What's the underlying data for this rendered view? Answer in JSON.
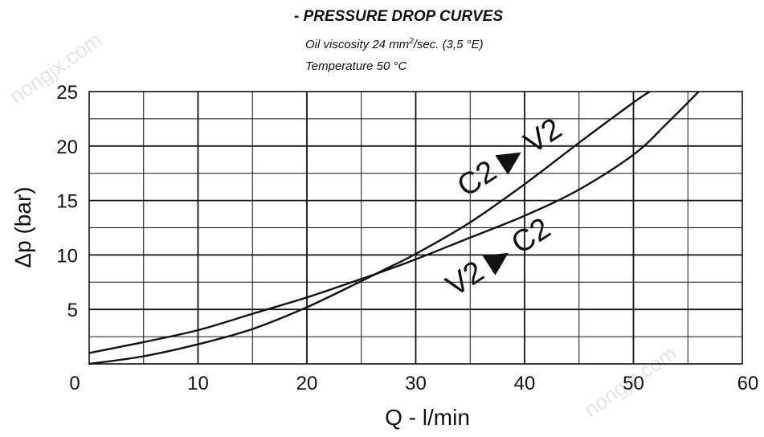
{
  "header": {
    "title": "- PRESSURE DROP CURVES",
    "subtitle_prefix": "Oil viscosity 24 mm",
    "subtitle_sup": "2",
    "subtitle_suffix": "/sec. (3,5 °E)",
    "subtitle2": "Temperature 50 °C"
  },
  "watermarks": [
    "nongjx.com",
    "nongjx.com"
  ],
  "chart_data": {
    "type": "line",
    "xlabel": "Q - l/min",
    "ylabel": "Δp (bar)",
    "xlim": [
      0,
      60
    ],
    "ylim": [
      0,
      25
    ],
    "x_major_ticks": [
      0,
      10,
      20,
      30,
      40,
      50,
      60
    ],
    "y_major_ticks": [
      5,
      10,
      15,
      20,
      25
    ],
    "x_tick_labels": [
      "0",
      "10",
      "20",
      "30",
      "40",
      "50",
      "60"
    ],
    "y_tick_labels": [
      "5",
      "10",
      "15",
      "20",
      "25"
    ],
    "grid": true,
    "series": [
      {
        "name": "C2 ▶ V2",
        "x": [
          0,
          5,
          10,
          15,
          20,
          25,
          27,
          30,
          35,
          40,
          45,
          50,
          51.5
        ],
        "y": [
          0,
          0.7,
          1.8,
          3.2,
          5.2,
          7.6,
          8.6,
          10.1,
          13.0,
          16.5,
          20.3,
          24.0,
          25
        ]
      },
      {
        "name": "V2 ▶ C2",
        "x": [
          0,
          5,
          10,
          15,
          20,
          25,
          27,
          30,
          35,
          40,
          45,
          50,
          53,
          56
        ],
        "y": [
          1.0,
          2.0,
          3.1,
          4.6,
          6.1,
          7.8,
          8.5,
          9.6,
          11.6,
          13.6,
          16.0,
          19.2,
          22.0,
          25
        ]
      }
    ]
  }
}
